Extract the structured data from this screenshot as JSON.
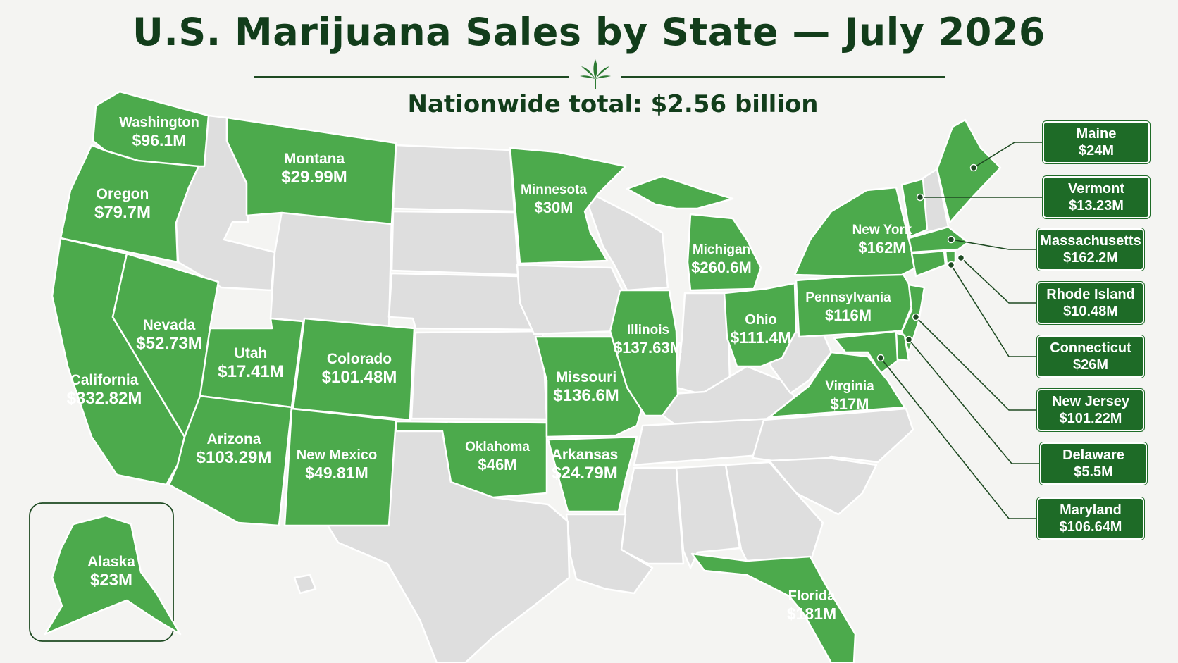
{
  "title": "U.S. Marijuana Sales by State — July 2026",
  "subtitle": "Nationwide total: $2.56 billion",
  "icons": {
    "ornament": "cannabis-leaf-icon"
  },
  "colors": {
    "legal_state": "#4caa4c",
    "other_state": "#dedede",
    "callout": "#1e6b27",
    "title": "#123d1b"
  },
  "states": [
    {
      "name": "Washington",
      "value": "$96.1M"
    },
    {
      "name": "Oregon",
      "value": "$79.7M"
    },
    {
      "name": "California",
      "value": "$332.82M"
    },
    {
      "name": "Nevada",
      "value": "$52.73M"
    },
    {
      "name": "Montana",
      "value": "$29.99M"
    },
    {
      "name": "Utah",
      "value": "$17.41M"
    },
    {
      "name": "Colorado",
      "value": "$101.48M"
    },
    {
      "name": "Arizona",
      "value": "$103.29M"
    },
    {
      "name": "New Mexico",
      "value": "$49.81M"
    },
    {
      "name": "Minnesota",
      "value": "$30M"
    },
    {
      "name": "Oklahoma",
      "value": "$46M"
    },
    {
      "name": "Missouri",
      "value": "$136.6M"
    },
    {
      "name": "Arkansas",
      "value": "$24.79M"
    },
    {
      "name": "Illinois",
      "value": "$137.63M"
    },
    {
      "name": "Michigan",
      "value": "$260.6M"
    },
    {
      "name": "Ohio",
      "value": "$111.4M"
    },
    {
      "name": "Pennsylvania",
      "value": "$116M"
    },
    {
      "name": "New York",
      "value": "$162M"
    },
    {
      "name": "Virginia",
      "value": "$17M"
    },
    {
      "name": "Florida",
      "value": "$181M"
    },
    {
      "name": "Alaska",
      "value": "$23M"
    }
  ],
  "callouts": [
    {
      "name": "Maine",
      "value": "$24M"
    },
    {
      "name": "Vermont",
      "value": "$13.23M"
    },
    {
      "name": "Massachusetts",
      "value": "$162.2M"
    },
    {
      "name": "Rhode Island",
      "value": "$10.48M"
    },
    {
      "name": "Connecticut",
      "value": "$26M"
    },
    {
      "name": "New Jersey",
      "value": "$101.22M"
    },
    {
      "name": "Delaware",
      "value": "$5.5M"
    },
    {
      "name": "Maryland",
      "value": "$106.64M"
    }
  ]
}
